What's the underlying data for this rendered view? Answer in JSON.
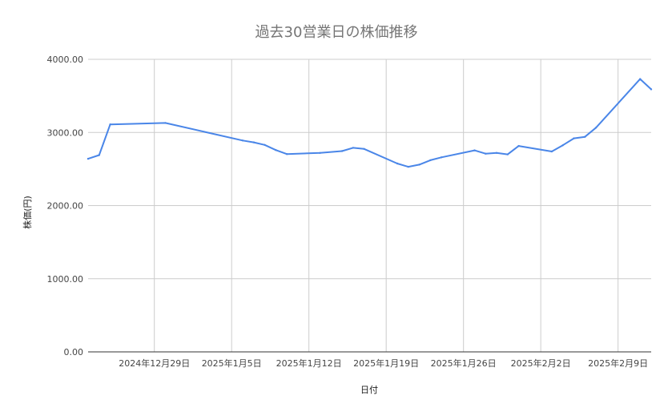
{
  "chart_data": {
    "type": "line",
    "title": "過去30営業日の株価推移",
    "xlabel": "日付",
    "ylabel": "株価(円)",
    "ylim": [
      0,
      4000
    ],
    "yticks": [
      0,
      1000,
      2000,
      3000,
      4000
    ],
    "ytick_labels": [
      "0.00",
      "1000.00",
      "2000.00",
      "3000.00",
      "4000.00"
    ],
    "xlim": [
      "2024-12-23",
      "2025-02-12"
    ],
    "xticks": [
      "2024-12-29",
      "2025-01-05",
      "2025-01-12",
      "2025-01-19",
      "2025-01-26",
      "2025-02-02",
      "2025-02-09"
    ],
    "xtick_labels": [
      "2024年12月29日",
      "2025年1月5日",
      "2025年1月12日",
      "2025年1月19日",
      "2025年1月26日",
      "2025年2月2日",
      "2025年2月9日"
    ],
    "grid": true,
    "legend": "none",
    "color": "#4a86e8",
    "x": [
      "2024-12-23",
      "2024-12-24",
      "2024-12-25",
      "2024-12-30",
      "2025-01-06",
      "2025-01-07",
      "2025-01-08",
      "2025-01-09",
      "2025-01-10",
      "2025-01-13",
      "2025-01-15",
      "2025-01-16",
      "2025-01-17",
      "2025-01-20",
      "2025-01-21",
      "2025-01-22",
      "2025-01-23",
      "2025-01-24",
      "2025-01-27",
      "2025-01-28",
      "2025-01-29",
      "2025-01-30",
      "2025-01-31",
      "2025-02-03",
      "2025-02-04",
      "2025-02-05",
      "2025-02-06",
      "2025-02-07",
      "2025-02-11",
      "2025-02-12"
    ],
    "values": [
      2640,
      2690,
      3110,
      3130,
      2890,
      2865,
      2830,
      2760,
      2705,
      2720,
      2745,
      2790,
      2775,
      2575,
      2530,
      2560,
      2620,
      2660,
      2755,
      2710,
      2720,
      2700,
      2815,
      2740,
      2825,
      2920,
      2940,
      3065,
      3730,
      3590
    ]
  }
}
